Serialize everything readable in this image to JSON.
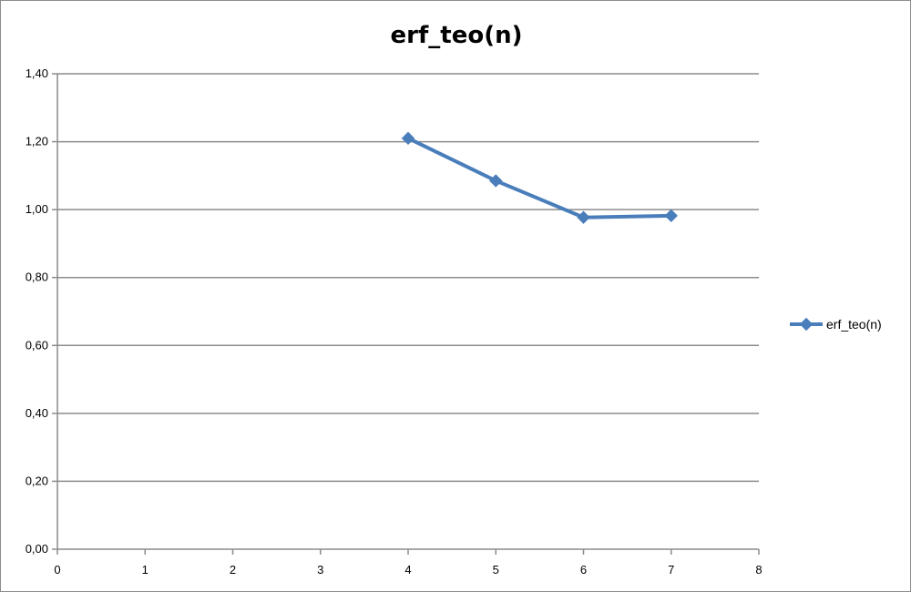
{
  "chart_data": {
    "type": "scatter",
    "title": "erf_teo(n)",
    "xlabel": "",
    "ylabel": "",
    "xlim": [
      0,
      8
    ],
    "ylim": [
      0,
      1.4
    ],
    "x_ticks": [
      "0",
      "1",
      "2",
      "3",
      "4",
      "5",
      "6",
      "7",
      "8"
    ],
    "y_ticks": [
      "0,00",
      "0,20",
      "0,40",
      "0,60",
      "0,80",
      "1,00",
      "1,20",
      "1,40"
    ],
    "grid": "horizontal",
    "legend_position": "right",
    "series": [
      {
        "name": "erf_teo(n)",
        "color": "#4a7ebb",
        "marker": "diamond",
        "x": [
          4,
          5,
          6,
          7
        ],
        "y": [
          1.21,
          1.085,
          0.977,
          0.982
        ]
      }
    ]
  }
}
